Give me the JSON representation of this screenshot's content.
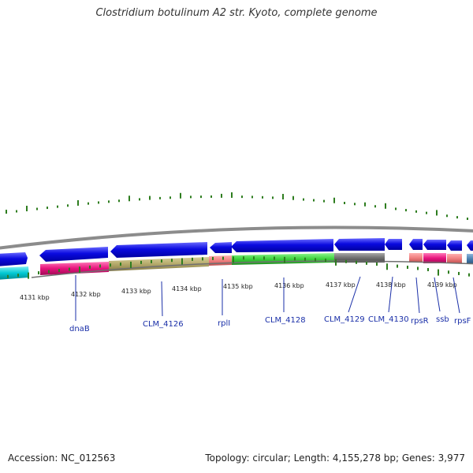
{
  "title": "Clostridium botulinum A2 str. Kyoto, complete genome",
  "footer": {
    "accession": "Accession: NC_012563",
    "summary": "Topology: circular; Length: 4,155,278 bp; Genes: 3,977"
  },
  "ticks": [
    {
      "label": "4131 kbp"
    },
    {
      "label": "4132 kbp"
    },
    {
      "label": "4133 kbp"
    },
    {
      "label": "4134 kbp"
    },
    {
      "label": "4135 kbp"
    },
    {
      "label": "4136 kbp"
    },
    {
      "label": "4137 kbp"
    },
    {
      "label": "4138 kbp"
    },
    {
      "label": "4139 kbp"
    }
  ],
  "gene_labels": [
    "dnaB",
    "CLM_4126",
    "rplI",
    "CLM_4128",
    "CLM_4129",
    "CLM_4130",
    "rpsR",
    "ssb",
    "rpsF"
  ],
  "colors": {
    "cds_arrow": "#0a0ae0",
    "cyan": "#00c8d2",
    "magenta": "#e6147d",
    "khaki": "#b4a96a",
    "salmon": "#f08080",
    "green": "#3cd23c",
    "gray": "#707070",
    "steelblue": "#4a7fb0",
    "tick_green": "#2e7d1f",
    "backbone": "#8c8c8c",
    "label_blue": "#1a2fa8"
  }
}
